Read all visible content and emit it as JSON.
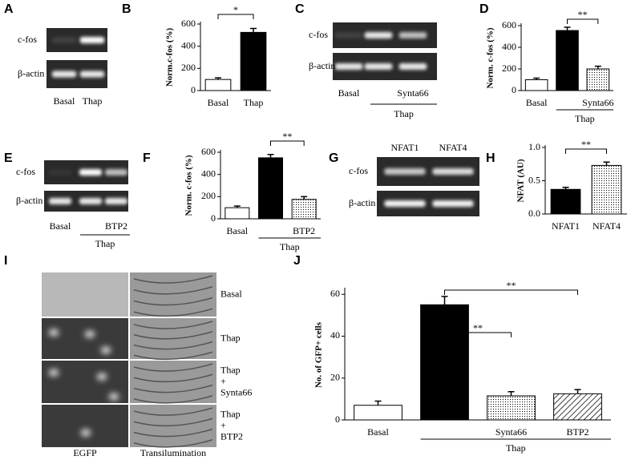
{
  "panel_letters": [
    "A",
    "B",
    "C",
    "D",
    "E",
    "F",
    "G",
    "H",
    "I",
    "J"
  ],
  "gels": [
    {
      "rows": [
        "c-fos",
        "β-actin"
      ],
      "lanes": [
        "Basal",
        "Thap"
      ]
    },
    {
      "rows": [
        "c-fos",
        "β-actin"
      ],
      "lanes": [
        "Basal",
        null,
        "Synta66"
      ],
      "group": "Thap"
    },
    {
      "rows": [
        "c-fos",
        "β-actin"
      ],
      "lanes": [
        "Basal",
        null,
        "BTP2"
      ],
      "group": "Thap"
    },
    {
      "rows": [
        "c-fos",
        "β-actin"
      ],
      "lanes": [
        "NFAT1",
        "NFAT4"
      ]
    }
  ],
  "chart_data": [
    {
      "type": "bar",
      "ylabel": "Norm.c-fos (%)",
      "categories": [
        "Basal",
        "Thap"
      ],
      "values": [
        100,
        525
      ],
      "errors": [
        15,
        35
      ],
      "fills": [
        "white",
        "black"
      ],
      "ylim": [
        0,
        600
      ],
      "yticks": [
        0,
        200,
        400,
        600
      ],
      "significance": [
        {
          "from": 0,
          "to": 1,
          "label": "*"
        }
      ]
    },
    {
      "type": "bar",
      "ylabel": "Norm. c-fos (%)",
      "categories": [
        "Basal",
        null,
        "Synta66"
      ],
      "group": "Thap",
      "values": [
        100,
        555,
        200
      ],
      "errors": [
        15,
        30,
        25
      ],
      "fills": [
        "white",
        "black",
        "dots"
      ],
      "ylim": [
        0,
        600
      ],
      "yticks": [
        0,
        200,
        400,
        600
      ],
      "significance": [
        {
          "from": 1,
          "to": 2,
          "label": "**"
        }
      ]
    },
    {
      "type": "bar",
      "ylabel": "Norm. c-fos (%)",
      "categories": [
        "Basal",
        null,
        "BTP2"
      ],
      "group": "Thap",
      "values": [
        100,
        550,
        175
      ],
      "errors": [
        15,
        30,
        25
      ],
      "fills": [
        "white",
        "black",
        "dots"
      ],
      "ylim": [
        0,
        600
      ],
      "yticks": [
        0,
        200,
        400,
        600
      ],
      "significance": [
        {
          "from": 1,
          "to": 2,
          "label": "**"
        }
      ]
    },
    {
      "type": "bar",
      "ylabel": "NFAT (AU)",
      "categories": [
        "NFAT1",
        "NFAT4"
      ],
      "values": [
        0.37,
        0.73
      ],
      "errors": [
        0.03,
        0.05
      ],
      "fills": [
        "black",
        "dots"
      ],
      "ylim": [
        0,
        1.0
      ],
      "yticks": [
        {
          "value": 0,
          "label": "0.0"
        },
        {
          "value": 0.5,
          "label": "0.5"
        },
        {
          "value": 1.0,
          "label": "1.0"
        }
      ],
      "significance": [
        {
          "from": 0,
          "to": 1,
          "label": "**"
        }
      ]
    },
    {
      "type": "bar",
      "ylabel": "No. of GFP+ cells",
      "categories": [
        "Basal",
        null,
        "Synta66",
        "BTP2"
      ],
      "group": "Thap",
      "values": [
        7,
        55,
        11.5,
        12.5
      ],
      "errors": [
        2,
        4,
        2,
        2
      ],
      "fills": [
        "white",
        "black",
        "dots",
        "hatch"
      ],
      "ylim": [
        0,
        62
      ],
      "yticks": [
        0,
        20,
        40,
        60
      ],
      "significance": [
        {
          "from": 1,
          "to": 2,
          "label": "**"
        },
        {
          "from": 1,
          "to": 3,
          "label": "**"
        }
      ]
    }
  ],
  "imaging": {
    "rows": [
      [
        "Basal"
      ],
      [
        "Thap"
      ],
      [
        "Thap",
        "+",
        "Synta66"
      ],
      [
        "Thap",
        "+",
        "BTP2"
      ]
    ],
    "columns": [
      "EGFP",
      "Transilumination"
    ]
  }
}
